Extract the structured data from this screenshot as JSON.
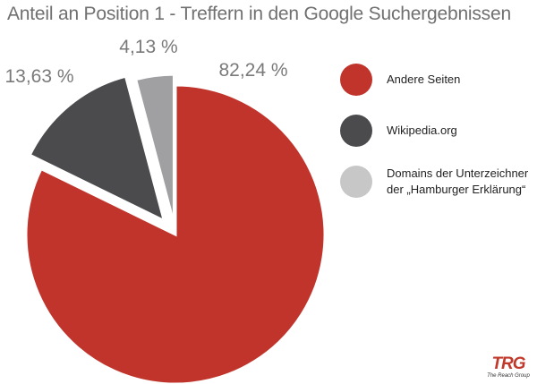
{
  "chart_data": {
    "type": "pie",
    "title": "Anteil an Position 1 - Treffern in den Google Suchergebnissen",
    "slices": [
      {
        "label": "Andere Seiten",
        "value": 82.24,
        "display": "82,24 %",
        "color": "#c0342b"
      },
      {
        "label": "Wikipedia.org",
        "value": 13.63,
        "display": "13,63 %",
        "color": "#4b4b4e"
      },
      {
        "label": "Domains der Unterzeichner der „Hamburger Erklärung“",
        "label_lines": [
          "Domains der Unterzeichner",
          "der „Hamburger Erklärung“"
        ],
        "value": 4.13,
        "display": "4,13 %",
        "color": "#a0a0a3"
      }
    ],
    "legend_position": "right",
    "exploded": true
  },
  "legend_swatch_colors": [
    "#c0342b",
    "#4b4b4e",
    "#c7c7c7"
  ],
  "logo": {
    "mark": "TRG",
    "subtitle": "The Reach Group"
  }
}
